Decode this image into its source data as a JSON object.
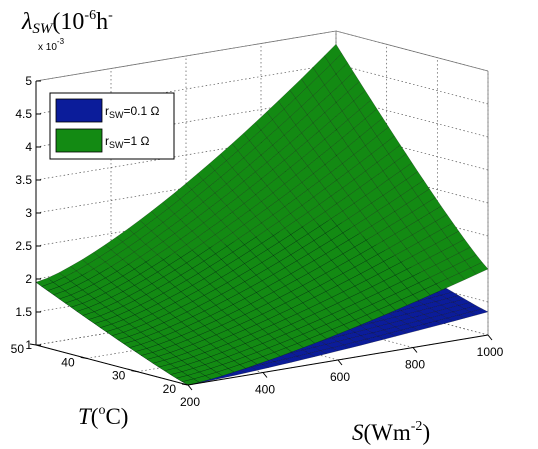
{
  "chart_data": {
    "type": "surface3d",
    "title": {
      "symbol": "λ",
      "sub": "SW",
      "rest": "(10",
      "sup": "-6",
      "unit": "h",
      "unit_sup": "-"
    },
    "z_exponent": {
      "base": "x 10",
      "power": "-3"
    },
    "xlabel": {
      "main": "S",
      "rest": "(Wm",
      "sup": "-2",
      "close": ")"
    },
    "ylabel": {
      "main": "T",
      "rest": "(",
      "sup": "o",
      "unit": "C)"
    },
    "x_range": [
      200,
      1000
    ],
    "y_range": [
      20,
      50
    ],
    "z_range": [
      1,
      5
    ],
    "x_ticks": [
      "200",
      "400",
      "600",
      "800",
      "1000"
    ],
    "y_ticks": [
      "20",
      "30",
      "40",
      "50"
    ],
    "z_ticks": [
      "1",
      "1.5",
      "2",
      "2.5",
      "3",
      "3.5",
      "4",
      "4.5",
      "5"
    ],
    "grid": true,
    "legend_position": "top-left",
    "series": [
      {
        "name": "rSW=0.1 Ω",
        "name_prefix": "r",
        "name_sub": "SW",
        "name_rest": "=0.1 Ω",
        "color": "#0b1c9a",
        "corners": {
          "S200_T20": 1.0,
          "S1000_T20": 1.35,
          "S200_T50": 1.95,
          "S1000_T50": 2.15
        }
      },
      {
        "name": "rSW=1 Ω",
        "name_prefix": "r",
        "name_sub": "SW",
        "name_rest": "=1 Ω",
        "color": "#138a13",
        "corners": {
          "S200_T20": 1.0,
          "S1000_T20": 2.0,
          "S200_T50": 1.95,
          "S1000_T50": 4.8
        }
      }
    ]
  }
}
